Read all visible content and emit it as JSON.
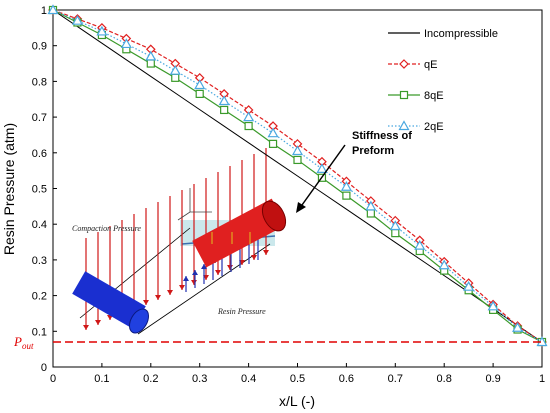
{
  "chart_data": {
    "type": "line",
    "xlabel": "x/L (-)",
    "ylabel": "Resin Pressure (atm)",
    "xlim": [
      0,
      1
    ],
    "ylim": [
      0,
      1
    ],
    "x_ticks": [
      "0",
      "0.1",
      "0.2",
      "0.3",
      "0.4",
      "0.5",
      "0.6",
      "0.7",
      "0.8",
      "0.9",
      "1"
    ],
    "y_ticks": [
      "0",
      "0.1",
      "0.2",
      "0.3",
      "0.4",
      "0.5",
      "0.6",
      "0.7",
      "0.8",
      "0.9",
      "1"
    ],
    "grid": false,
    "legend_position": "top-right",
    "x": [
      0,
      0.05,
      0.1,
      0.15,
      0.2,
      0.25,
      0.3,
      0.35,
      0.4,
      0.45,
      0.5,
      0.55,
      0.6,
      0.65,
      0.7,
      0.75,
      0.8,
      0.85,
      0.9,
      0.95,
      1
    ],
    "series": [
      {
        "name": "Incompressible",
        "color": "#000000",
        "marker": "none",
        "dash": "solid",
        "values": [
          1,
          0.9535,
          0.907,
          0.8605,
          0.814,
          0.7675,
          0.721,
          0.6745,
          0.628,
          0.5815,
          0.535,
          0.4885,
          0.442,
          0.3955,
          0.349,
          0.3025,
          0.256,
          0.2095,
          0.163,
          0.1165,
          0.07
        ]
      },
      {
        "name": "qE",
        "color": "#e02020",
        "marker": "diamond",
        "dash": "dashed",
        "values": [
          1,
          0.975,
          0.95,
          0.92,
          0.89,
          0.85,
          0.81,
          0.765,
          0.72,
          0.675,
          0.625,
          0.575,
          0.52,
          0.465,
          0.41,
          0.355,
          0.295,
          0.235,
          0.175,
          0.115,
          0.07
        ]
      },
      {
        "name": "8qE",
        "color": "#3a9a2a",
        "marker": "square",
        "dash": "solid",
        "values": [
          1,
          0.965,
          0.93,
          0.89,
          0.85,
          0.81,
          0.765,
          0.72,
          0.675,
          0.625,
          0.58,
          0.53,
          0.48,
          0.43,
          0.375,
          0.325,
          0.27,
          0.215,
          0.16,
          0.105,
          0.07
        ]
      },
      {
        "name": "2qE",
        "color": "#4aa8e0",
        "marker": "triangle",
        "dash": "dotted",
        "values": [
          1,
          0.97,
          0.94,
          0.905,
          0.87,
          0.83,
          0.79,
          0.745,
          0.7,
          0.655,
          0.605,
          0.555,
          0.505,
          0.45,
          0.395,
          0.34,
          0.285,
          0.225,
          0.17,
          0.11,
          0.07
        ]
      }
    ],
    "reference_line": {
      "label_main": "P",
      "label_sub": "out",
      "y": 0.07,
      "color": "#e00000"
    },
    "annotation": {
      "line1": "Stiffness of",
      "line2": "Preform"
    },
    "inset": {
      "compaction_label": "Compaction Pressure",
      "resin_label": "Resin Pressure"
    }
  }
}
